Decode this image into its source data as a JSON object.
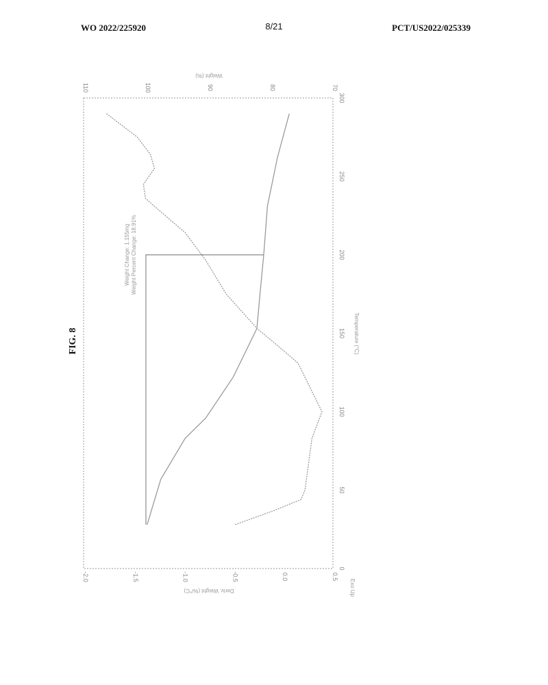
{
  "header": {
    "left": "WO 2022/225920",
    "center": "8/21",
    "right": "PCT/US2022/025339"
  },
  "figure_label": "FIG. 8",
  "chart_data": {
    "type": "line",
    "orientation": "rotated 90 degrees",
    "xlabel": "Temperature (°C)",
    "xlim": [
      0,
      300
    ],
    "x_ticks": [
      "0",
      "50",
      "100",
      "150",
      "200",
      "250",
      "300"
    ],
    "y1label": "Weight (%)",
    "y1lim": [
      70,
      110
    ],
    "y1_ticks": [
      "110",
      "100",
      "90",
      "80",
      "70"
    ],
    "y2label": "Deriv. Weight (%/°C)",
    "y2lim": [
      -2,
      0.5
    ],
    "y2_ticks": [
      "-2.0",
      "-1.5",
      "-1.0",
      "-0.5",
      "0.0",
      "0.5"
    ],
    "corner_label": "Exo Up",
    "grid": false,
    "series": [
      {
        "axis": "weight",
        "x": [
          28,
          57,
          83,
          96,
          122,
          153,
          179,
          200,
          231,
          262,
          290
        ],
        "y": [
          99.8,
          97.6,
          93.7,
          90.4,
          86.0,
          82.2,
          81.6,
          81.1,
          80.5,
          78.9,
          77.0
        ]
      },
      {
        "axis": "deriv",
        "x": [
          28,
          37,
          44,
          50,
          83,
          100,
          109,
          131,
          144,
          153,
          175,
          197,
          214,
          231,
          236,
          245,
          255,
          264,
          275,
          290
        ],
        "y": [
          -0.48,
          -0.09,
          0.18,
          0.22,
          0.29,
          0.39,
          0.32,
          0.15,
          -0.09,
          -0.26,
          -0.57,
          -0.78,
          -0.98,
          -1.29,
          -1.38,
          -1.4,
          -1.29,
          -1.33,
          -1.46,
          -1.77
        ]
      }
    ],
    "annotation": {
      "lines": [
        "Weight Change: 1.155mg",
        "Weight Percent Change: 18.91%"
      ],
      "from_temp": 28,
      "to_temp": 200,
      "from_weight": 100,
      "to_weight": 81.1
    }
  }
}
